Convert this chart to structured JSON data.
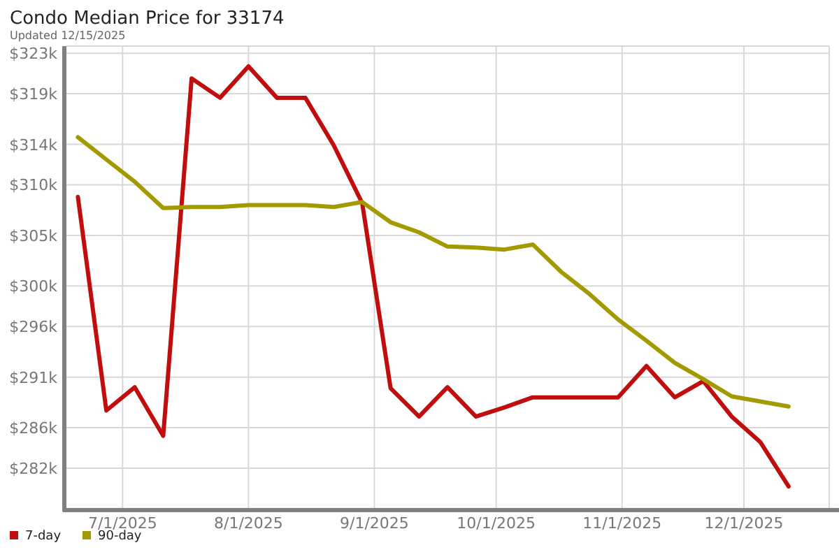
{
  "chart_data": {
    "type": "line",
    "title": "Condo Median Price for 33174",
    "subtitle": "Updated 12/15/2025",
    "x": [
      "2025-06-20",
      "2025-06-27",
      "2025-07-04",
      "2025-07-11",
      "2025-07-18",
      "2025-07-25",
      "2025-08-01",
      "2025-08-08",
      "2025-08-15",
      "2025-08-22",
      "2025-08-29",
      "2025-09-05",
      "2025-09-12",
      "2025-09-19",
      "2025-09-26",
      "2025-10-03",
      "2025-10-10",
      "2025-10-17",
      "2025-10-24",
      "2025-10-31",
      "2025-11-07",
      "2025-11-14",
      "2025-11-21",
      "2025-11-28",
      "2025-12-05",
      "2025-12-12"
    ],
    "series": [
      {
        "name": "7-day",
        "color": "#c00d0d",
        "values": [
          308.8,
          287.7,
          290.0,
          285.2,
          320.5,
          318.6,
          321.7,
          318.6,
          318.6,
          313.9,
          308.2,
          289.9,
          287.1,
          290.0,
          287.1,
          288.0,
          289.0,
          289.0,
          289.0,
          289.0,
          292.1,
          289.0,
          290.6,
          287.1,
          284.6,
          280.2
        ]
      },
      {
        "name": "90-day",
        "color": "#a39a00",
        "values": [
          314.7,
          312.5,
          310.3,
          307.7,
          307.8,
          307.8,
          308.0,
          308.0,
          308.0,
          307.8,
          308.3,
          306.3,
          305.3,
          303.9,
          303.8,
          303.6,
          304.1,
          301.4,
          299.2,
          296.7,
          294.6,
          292.4,
          290.8,
          289.1,
          288.6,
          288.1
        ]
      }
    ],
    "xlim": [
      "2025-06-17",
      "2025-12-22"
    ],
    "xticks": [
      {
        "value": "2025-07-01",
        "label": "7/1/2025"
      },
      {
        "value": "2025-08-01",
        "label": "8/1/2025"
      },
      {
        "value": "2025-09-01",
        "label": "9/1/2025"
      },
      {
        "value": "2025-10-01",
        "label": "10/1/2025"
      },
      {
        "value": "2025-11-01",
        "label": "11/1/2025"
      },
      {
        "value": "2025-12-01",
        "label": "12/1/2025"
      }
    ],
    "ylim": [
      278,
      323.7
    ],
    "yticks": [
      {
        "value": 282,
        "label": "$282k"
      },
      {
        "value": 286,
        "label": "$286k"
      },
      {
        "value": 291,
        "label": "$291k"
      },
      {
        "value": 296,
        "label": "$296k"
      },
      {
        "value": 300,
        "label": "$300k"
      },
      {
        "value": 305,
        "label": "$305k"
      },
      {
        "value": 310,
        "label": "$310k"
      },
      {
        "value": 314,
        "label": "$314k"
      },
      {
        "value": 319,
        "label": "$319k"
      },
      {
        "value": 323,
        "label": "$323k"
      }
    ],
    "grid": true,
    "legend": "bottom left",
    "marker": "none",
    "line_style": "solid"
  }
}
